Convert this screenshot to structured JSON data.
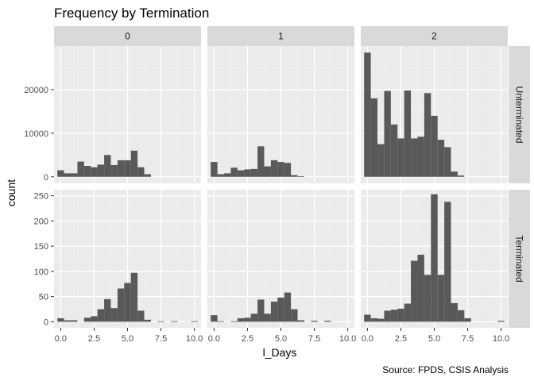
{
  "chart_data": {
    "type": "bar",
    "title": "Frequency by Termination",
    "xlabel": "l_Days",
    "ylabel": "count",
    "caption": "Source: FPDS, CSIS Analysis",
    "x_ticks": [
      0,
      2.5,
      5,
      7.5,
      10
    ],
    "x_tick_labels": [
      "0.0",
      "2.5",
      "5.0",
      "7.5",
      "10.0"
    ],
    "xlim": [
      -0.5,
      10.5
    ],
    "bin_width": 0.5,
    "bin_starts": [
      -0.25,
      0.25,
      0.75,
      1.25,
      1.75,
      2.25,
      2.75,
      3.25,
      3.75,
      4.25,
      4.75,
      5.25,
      5.75,
      6.25,
      6.75,
      7.25,
      7.75,
      8.25,
      8.75,
      9.25,
      9.75
    ],
    "columns": [
      "0",
      "1",
      "2"
    ],
    "rows": [
      {
        "label": "Unterminated",
        "ylim": [
          -1500,
          30000
        ],
        "y_ticks": [
          0,
          10000,
          20000
        ],
        "y_tick_labels": [
          "0",
          "10000",
          "20000"
        ],
        "panels": [
          {
            "column": "0",
            "values": [
              1500,
              800,
              800,
              3500,
              2500,
              2200,
              2800,
              5000,
              2700,
              3800,
              3800,
              6000,
              2200,
              600,
              0,
              0,
              0,
              0,
              0,
              0,
              0
            ]
          },
          {
            "column": "1",
            "values": [
              3400,
              600,
              800,
              2100,
              1500,
              1700,
              1800,
              7000,
              2400,
              3800,
              3400,
              3200,
              400,
              100,
              0,
              0,
              0,
              0,
              0,
              0,
              0
            ]
          },
          {
            "column": "2",
            "values": [
              28500,
              18000,
              7500,
              19700,
              12000,
              8800,
              19800,
              8800,
              9200,
              19200,
              14000,
              8500,
              6800,
              1200,
              300,
              0,
              0,
              0,
              0,
              0,
              0
            ]
          }
        ]
      },
      {
        "label": "Terminated",
        "ylim": [
          -12,
          262
        ],
        "y_ticks": [
          0,
          50,
          100,
          150,
          200,
          250
        ],
        "y_tick_labels": [
          "0",
          "50",
          "100",
          "150",
          "200",
          "250"
        ],
        "panels": [
          {
            "column": "0",
            "values": [
              7,
              3,
              3,
              0,
              8,
              11,
              25,
              45,
              27,
              66,
              77,
              97,
              22,
              4,
              0,
              1,
              0,
              1,
              0,
              0,
              1
            ]
          },
          {
            "column": "1",
            "values": [
              13,
              1,
              0,
              1,
              7,
              8,
              16,
              44,
              16,
              40,
              48,
              58,
              25,
              3,
              0,
              2,
              0,
              2,
              0,
              0,
              0
            ]
          },
          {
            "column": "2",
            "values": [
              14,
              7,
              6,
              22,
              24,
              26,
              36,
              121,
              133,
              93,
              253,
              93,
              238,
              37,
              23,
              7,
              0,
              0,
              0,
              0,
              2
            ]
          }
        ]
      }
    ]
  }
}
